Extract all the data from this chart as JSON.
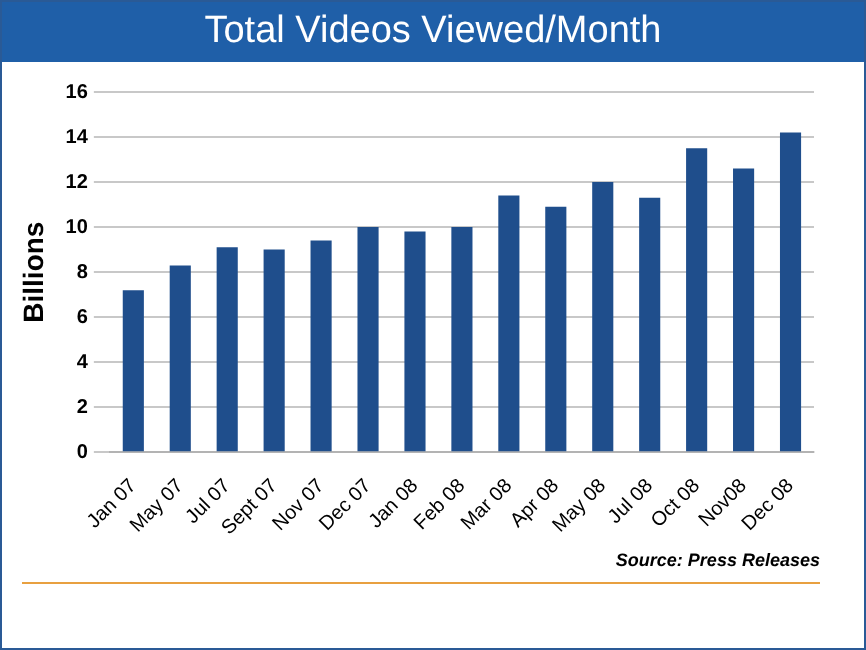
{
  "chart_data": {
    "type": "bar",
    "title": "Total Videos Viewed/Month",
    "ylabel": "Billions",
    "categories": [
      "Jan 07",
      "May 07",
      "Jul 07",
      "Sept 07",
      "Nov 07",
      "Dec 07",
      "Jan 08",
      "Feb 08",
      "Mar 08",
      "Apr 08",
      "May 08",
      "Jul 08",
      "Oct 08",
      "Nov08",
      "Dec 08"
    ],
    "values": [
      7.2,
      8.3,
      9.1,
      9.0,
      9.4,
      10.0,
      9.8,
      10.0,
      11.4,
      10.9,
      12.0,
      11.3,
      13.5,
      12.6,
      14.2
    ],
    "color": "#1f4e8c",
    "ylim": [
      0,
      16
    ],
    "yticks": [
      0,
      2,
      4,
      6,
      8,
      10,
      12,
      14,
      16
    ],
    "grid": "y",
    "annotations": [
      "Source: Press Releases"
    ]
  }
}
